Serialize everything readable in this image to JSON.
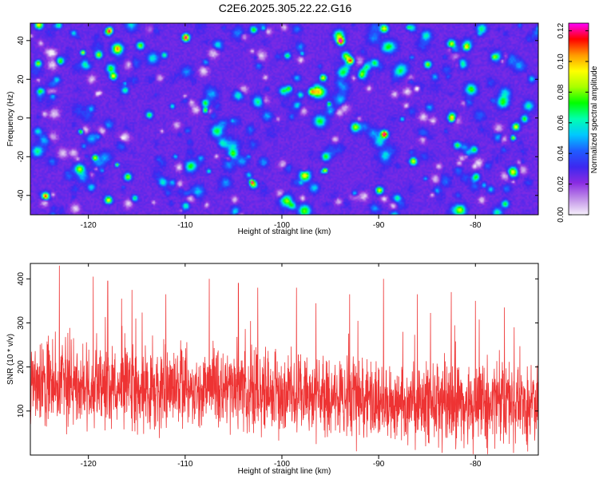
{
  "title": "C2E6.2025.305.22.22.G16",
  "colors": {
    "snr_line": "#ee3333",
    "axis": "#000000",
    "colormap": [
      "#f6f0fb",
      "#c08fe8",
      "#8a2be2",
      "#3c28f0",
      "#1f5cff",
      "#00c8ff",
      "#00ffb0",
      "#00ff00",
      "#a8ff00",
      "#ffff00",
      "#ff9900",
      "#ff0000",
      "#ff00ff"
    ]
  },
  "chart_data": [
    {
      "type": "heatmap",
      "title": "C2E6.2025.305.22.22.G16",
      "xlabel": "Height of straight line (km)",
      "ylabel": "Frequency (Hz)",
      "xlim": [
        -126,
        -73.5
      ],
      "ylim": [
        -50,
        49
      ],
      "xticks": [
        -120,
        -110,
        -100,
        -90,
        -80
      ],
      "xtick_labels": [
        "-120",
        "-110",
        "-100",
        "-90",
        "-80"
      ],
      "yticks": [
        -40,
        -20,
        0,
        20,
        40
      ],
      "ytick_labels": [
        "-40",
        "-20",
        "0",
        "20",
        "40"
      ],
      "colorbar": {
        "label": "Normalized spectral amplitude",
        "range": [
          0,
          0.125
        ],
        "ticks": [
          0,
          0.02,
          0.04,
          0.06,
          0.08,
          0.1,
          0.12
        ],
        "tick_labels": [
          "0.00",
          "0.02",
          "0.04",
          "0.06",
          "0.08",
          "0.10",
          "0.12"
        ]
      },
      "background_level": 0.025,
      "hotspots": [
        {
          "x": -124.5,
          "y": -40,
          "v": 0.11
        },
        {
          "x": -118,
          "y": 45,
          "v": 0.09
        },
        {
          "x": -110,
          "y": 42,
          "v": 0.12
        },
        {
          "x": -117.5,
          "y": 22,
          "v": 0.09
        },
        {
          "x": -94,
          "y": 40,
          "v": 0.12
        },
        {
          "x": -89.5,
          "y": -8,
          "v": 0.12
        },
        {
          "x": -93,
          "y": 30,
          "v": 0.1
        },
        {
          "x": -86.5,
          "y": -22,
          "v": 0.09
        },
        {
          "x": -82.5,
          "y": 0,
          "v": 0.08
        },
        {
          "x": -90,
          "y": -37,
          "v": 0.09
        },
        {
          "x": -103,
          "y": -34,
          "v": 0.08
        },
        {
          "x": -116,
          "y": -30,
          "v": 0.08
        },
        {
          "x": -81,
          "y": 37,
          "v": 0.08
        },
        {
          "x": -75,
          "y": 0,
          "v": 0.07
        },
        {
          "x": -77,
          "y": -44,
          "v": 0.07
        },
        {
          "x": -118,
          "y": -42,
          "v": 0.09
        },
        {
          "x": -119,
          "y": 33,
          "v": 0.08
        },
        {
          "x": -97,
          "y": 14,
          "v": 0.08
        },
        {
          "x": -108,
          "y": 8,
          "v": 0.07
        },
        {
          "x": -85,
          "y": 28,
          "v": 0.08
        },
        {
          "x": -123,
          "y": 30,
          "v": 0.07
        },
        {
          "x": -103,
          "y": 46,
          "v": 0.07
        },
        {
          "x": -80,
          "y": -30,
          "v": 0.07
        },
        {
          "x": -110,
          "y": -45,
          "v": 0.06
        },
        {
          "x": -99,
          "y": -45,
          "v": 0.06
        },
        {
          "x": -125,
          "y": 14,
          "v": 0.07
        }
      ]
    },
    {
      "type": "line",
      "xlabel": "Height of straight line (km)",
      "ylabel": "SNR (10 * v/v)",
      "xlim": [
        -126,
        -73.5
      ],
      "ylim": [
        0,
        435
      ],
      "xticks": [
        -120,
        -110,
        -100,
        -90,
        -80
      ],
      "xtick_labels": [
        "-120",
        "-110",
        "-100",
        "-90",
        "-80"
      ],
      "yticks": [
        100,
        200,
        300,
        400
      ],
      "ytick_labels": [
        "100",
        "200",
        "300",
        "400"
      ],
      "series": [
        {
          "name": "SNR",
          "trend_x": [
            -126,
            -115,
            -105,
            -95,
            -85,
            -73.5
          ],
          "trend_mean": [
            165,
            150,
            150,
            130,
            115,
            110
          ],
          "noise_spread": 75,
          "peaks": [
            {
              "x": -123,
              "y": 430
            },
            {
              "x": -119.5,
              "y": 405
            },
            {
              "x": -118,
              "y": 395
            },
            {
              "x": -115.5,
              "y": 375
            },
            {
              "x": -112,
              "y": 365
            },
            {
              "x": -107.5,
              "y": 400
            },
            {
              "x": -104.5,
              "y": 390
            },
            {
              "x": -102.5,
              "y": 380
            },
            {
              "x": -98.5,
              "y": 380
            },
            {
              "x": -93,
              "y": 365
            },
            {
              "x": -89.5,
              "y": 400
            },
            {
              "x": -86,
              "y": 365
            },
            {
              "x": -82.5,
              "y": 370
            },
            {
              "x": -80,
              "y": 350
            },
            {
              "x": -77,
              "y": 335
            },
            {
              "x": -76,
              "y": 290
            }
          ]
        }
      ]
    }
  ]
}
